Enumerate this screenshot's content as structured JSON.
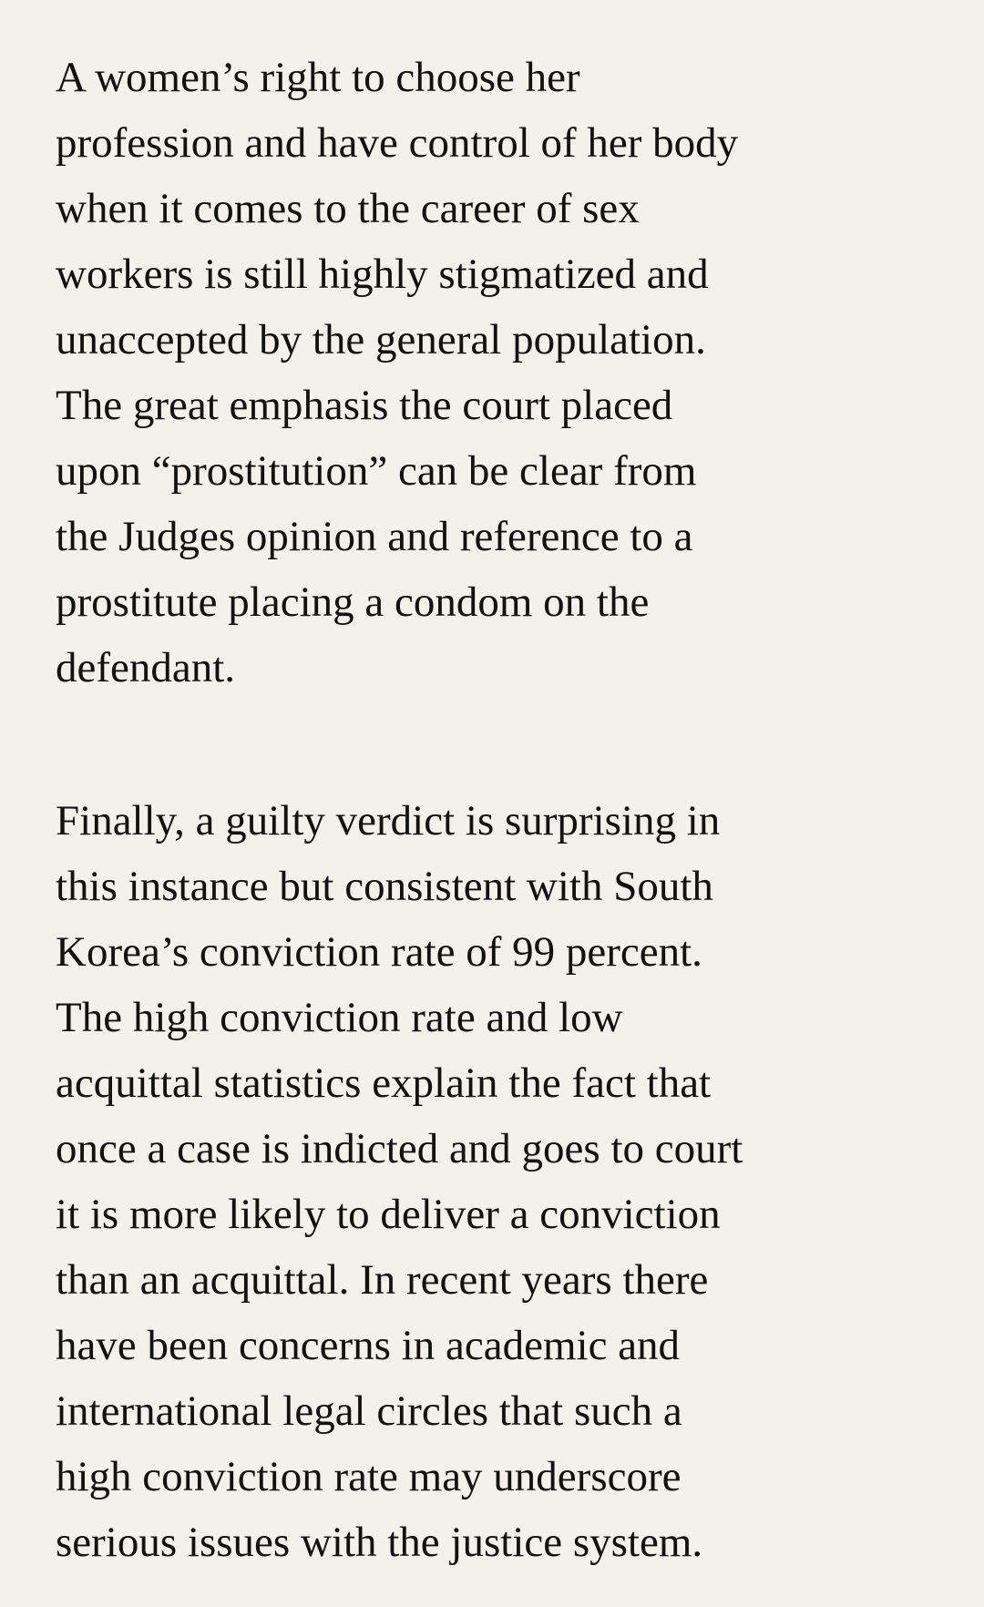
{
  "article": {
    "paragraphs": [
      {
        "lines": [
          "A women’s right to choose her",
          "profession and have control of her body",
          "when it comes to the career of sex",
          "workers is still highly stigmatized and",
          "unaccepted by the general population.",
          "The great emphasis the court placed",
          "upon “prostitution” can be clear from",
          "the Judges opinion and reference to a",
          "prostitute placing a condom on the",
          "defendant."
        ]
      },
      {
        "lines": [
          "Finally, a guilty verdict is surprising in",
          "this instance but consistent with South",
          "Korea’s conviction rate of 99 percent.",
          "The high conviction rate and low",
          "acquittal statistics explain the fact that",
          "once a case is indicted and goes to court",
          "it is more likely to deliver a conviction",
          "than an acquittal. In recent years there",
          "have been concerns in academic and",
          "international legal circles that such a",
          "high conviction rate may underscore",
          "serious issues with the justice system."
        ]
      }
    ]
  }
}
